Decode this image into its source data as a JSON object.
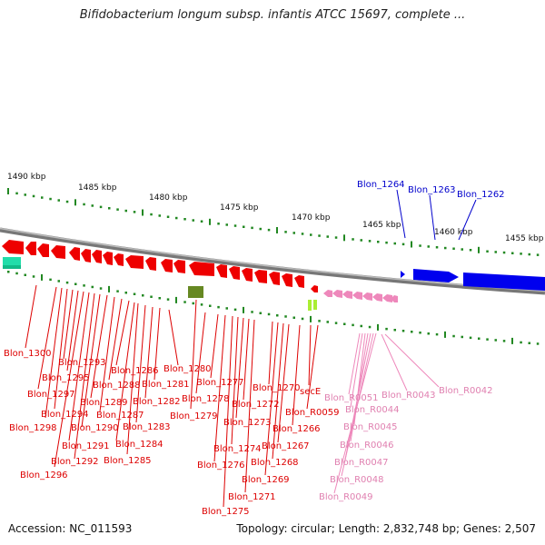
{
  "title": "Bifidobacterium longum subsp. infantis ATCC 15697, complete ...",
  "footer": {
    "accession": "Accession: NC_011593",
    "topology": "Topology: circular; Length: 2,832,748 bp; Genes: 2,507"
  },
  "colors": {
    "cds_forward": "#0000ee",
    "cds_reverse": "#ee0000",
    "rna": "#ee88bb",
    "misc_teal": "#22ddaa",
    "misc_olive": "#668822",
    "misc_lime": "#aaee33",
    "kbp_scale": "#228822"
  },
  "scale_labels": [
    "1490 kbp",
    "1485 kbp",
    "1480 kbp",
    "1475 kbp",
    "1470 kbp",
    "1465 kbp",
    "1460 kbp",
    "1455 kbp"
  ],
  "blue_labels": [
    "Blon_1264",
    "Blon_1263",
    "Blon_1262"
  ],
  "red_labels": [
    "Blon_1300",
    "Blon_1293",
    "Blon_1295",
    "Blon_1297",
    "Blon_1294",
    "Blon_1298",
    "Blon_1291",
    "Blon_1292",
    "Blon_1296",
    "Blon_1290",
    "Blon_1289",
    "Blon_1287",
    "Blon_1288",
    "Blon_1286",
    "Blon_1284",
    "Blon_1285",
    "Blon_1283",
    "Blon_1282",
    "Blon_1281",
    "Blon_1280",
    "Blon_1279",
    "Blon_1278",
    "Blon_1277",
    "Blon_1276",
    "Blon_1275",
    "Blon_1274",
    "Blon_1273",
    "Blon_1272",
    "Blon_1271",
    "Blon_1270",
    "Blon_1269",
    "Blon_1268",
    "Blon_1267",
    "Blon_1266",
    "secE",
    "Blon_R0059"
  ],
  "pink_labels": [
    "Blon_R0051",
    "Blon_R0044",
    "Blon_R0045",
    "Blon_R0046",
    "Blon_R0047",
    "Blon_R0048",
    "Blon_R0049",
    "Blon_R0043",
    "Blon_R0042"
  ]
}
